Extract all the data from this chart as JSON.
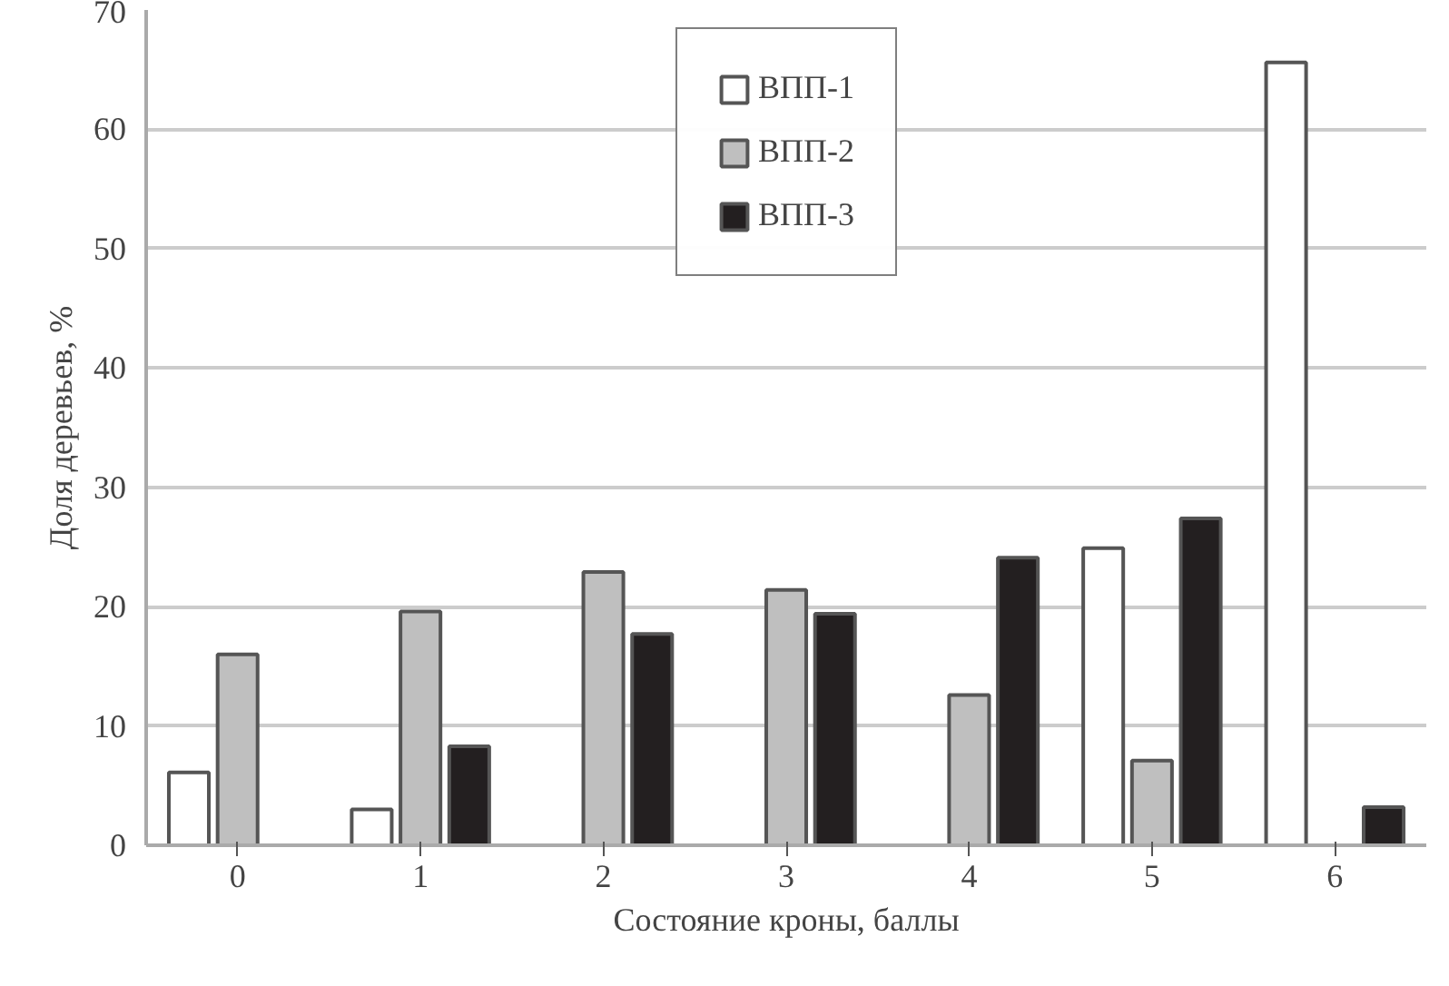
{
  "chart_data": {
    "type": "bar",
    "xlabel": "Состояние кроны, баллы",
    "ylabel": "Доля деревьев, %",
    "categories": [
      "0",
      "1",
      "2",
      "3",
      "4",
      "5",
      "6"
    ],
    "series": [
      {
        "name": "ВПП-1",
        "color": "#ffffff",
        "values": [
          6.1,
          3.0,
          null,
          null,
          null,
          24.9,
          65.6
        ]
      },
      {
        "name": "ВПП-2",
        "color": "#bfbfbf",
        "values": [
          16.0,
          19.6,
          22.9,
          21.4,
          12.6,
          7.1,
          null
        ]
      },
      {
        "name": "ВПП-3",
        "color": "#231f20",
        "values": [
          null,
          8.3,
          17.7,
          19.4,
          24.1,
          27.4,
          3.2
        ]
      }
    ],
    "ylim": [
      0,
      70
    ],
    "yticks": [
      0,
      10,
      20,
      30,
      40,
      50,
      60,
      70
    ],
    "grid": "y",
    "legend": "top"
  }
}
